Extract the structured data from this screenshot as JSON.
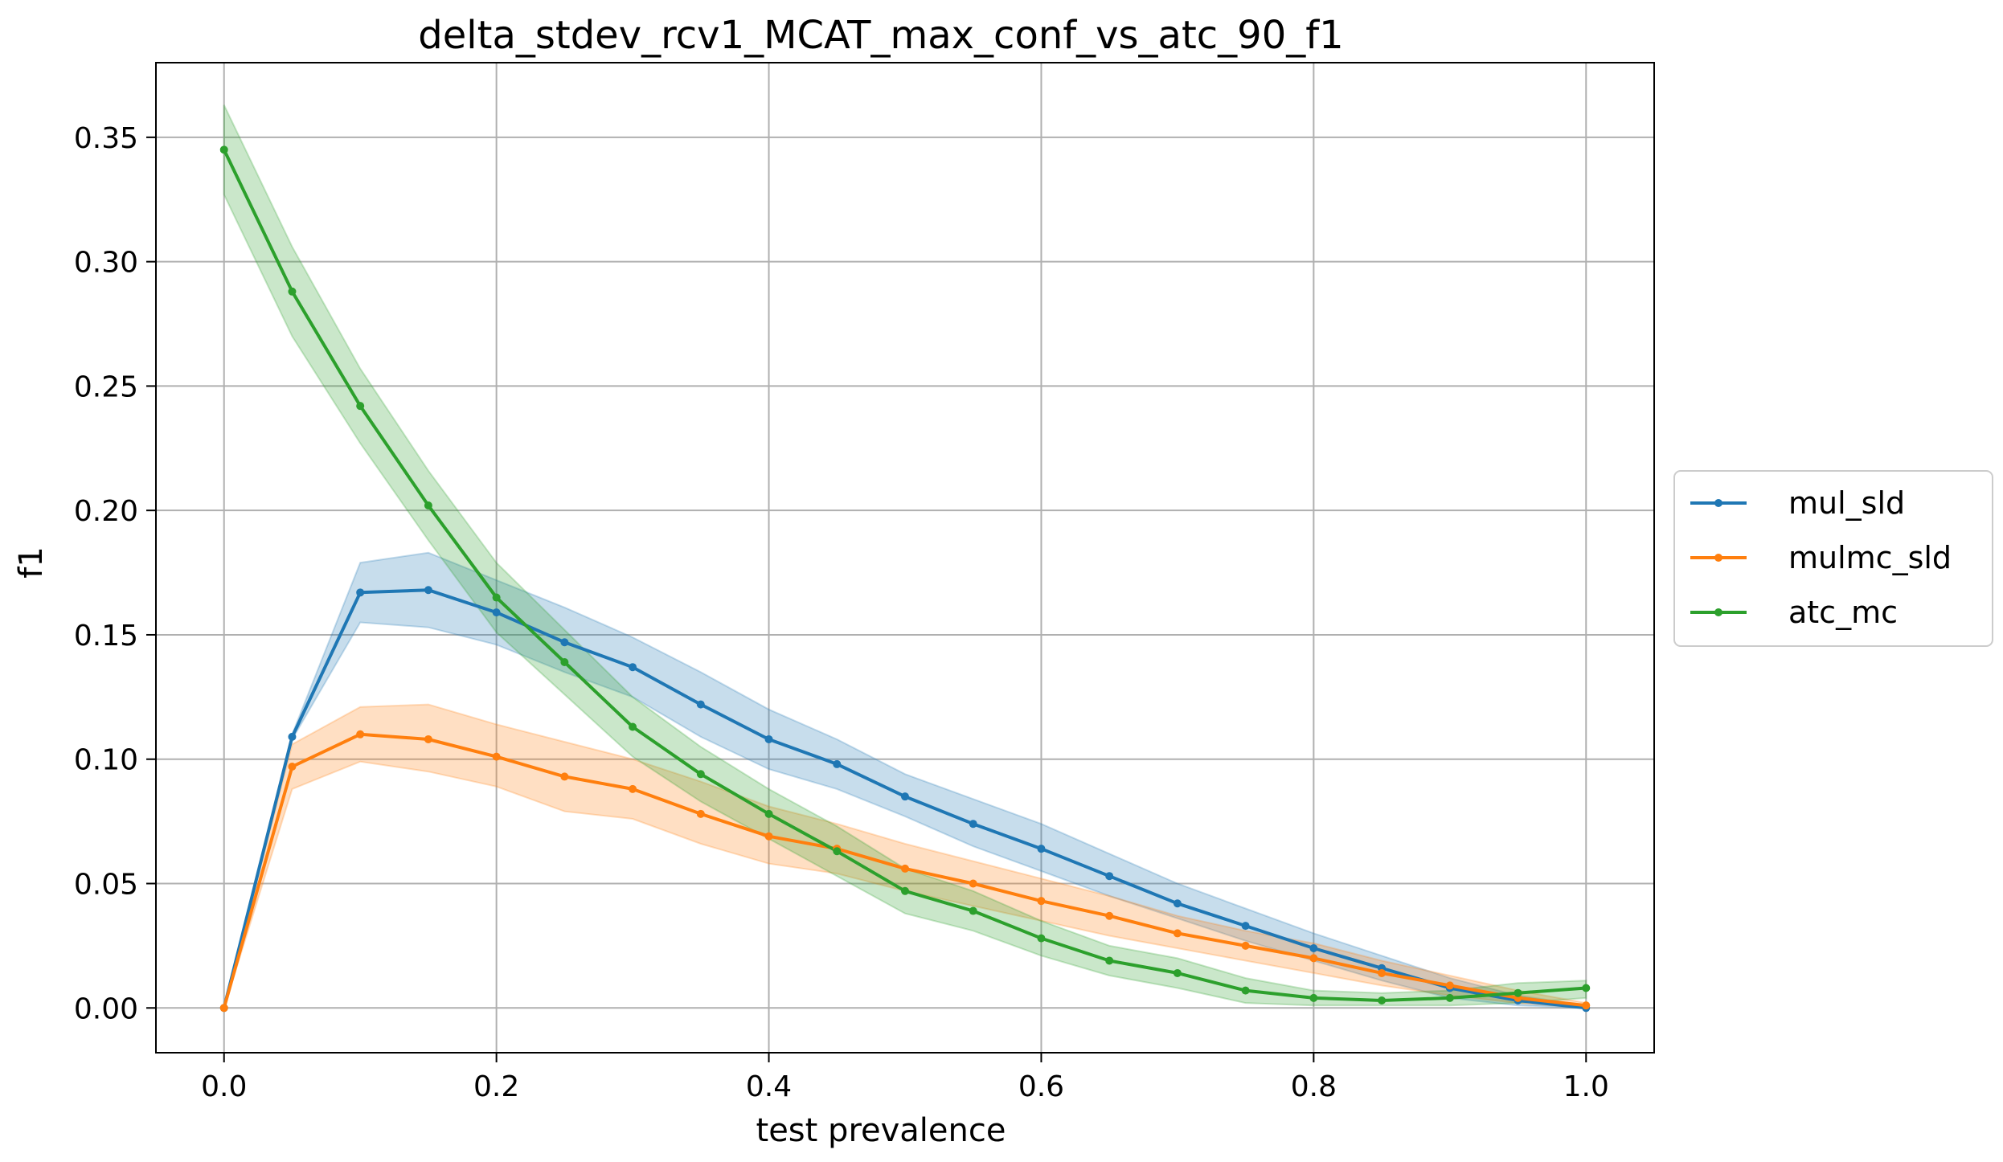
{
  "chart_data": {
    "type": "line",
    "title": "delta_stdev_rcv1_MCAT_max_conf_vs_atc_90_f1",
    "xlabel": "test prevalence",
    "ylabel": "f1",
    "xlim": [
      -0.05,
      1.05
    ],
    "ylim": [
      -0.018,
      0.38
    ],
    "xticks": [
      0.0,
      0.2,
      0.4,
      0.6,
      0.8,
      1.0
    ],
    "xtick_labels": [
      "0.0",
      "0.2",
      "0.4",
      "0.6",
      "0.8",
      "1.0"
    ],
    "yticks": [
      0.0,
      0.05,
      0.1,
      0.15,
      0.2,
      0.25,
      0.3,
      0.35
    ],
    "ytick_labels": [
      "0.00",
      "0.05",
      "0.10",
      "0.15",
      "0.20",
      "0.25",
      "0.30",
      "0.35"
    ],
    "grid": true,
    "legend_position": "center-right-outside",
    "x": [
      0.0,
      0.05,
      0.1,
      0.15,
      0.2,
      0.25,
      0.3,
      0.35,
      0.4,
      0.45,
      0.5,
      0.55,
      0.6,
      0.65,
      0.7,
      0.75,
      0.8,
      0.85,
      0.9,
      0.95,
      1.0
    ],
    "series": [
      {
        "name": "mul_sld",
        "color": "#1f77b4",
        "values": [
          0.0,
          0.109,
          0.167,
          0.168,
          0.159,
          0.147,
          0.137,
          0.122,
          0.108,
          0.098,
          0.085,
          0.074,
          0.064,
          0.053,
          0.042,
          0.033,
          0.024,
          0.016,
          0.008,
          0.003,
          0.0
        ],
        "band_lower": [
          0.0,
          0.108,
          0.155,
          0.153,
          0.146,
          0.135,
          0.125,
          0.109,
          0.096,
          0.088,
          0.077,
          0.065,
          0.055,
          0.045,
          0.036,
          0.027,
          0.019,
          0.011,
          0.004,
          0.001,
          0.0
        ],
        "band_upper": [
          0.0,
          0.11,
          0.179,
          0.183,
          0.172,
          0.161,
          0.149,
          0.135,
          0.12,
          0.108,
          0.094,
          0.084,
          0.074,
          0.062,
          0.05,
          0.04,
          0.03,
          0.021,
          0.012,
          0.005,
          0.001
        ]
      },
      {
        "name": "mulmc_sld",
        "color": "#ff7f0e",
        "values": [
          0.0,
          0.097,
          0.11,
          0.108,
          0.101,
          0.093,
          0.088,
          0.078,
          0.069,
          0.064,
          0.056,
          0.05,
          0.043,
          0.037,
          0.03,
          0.025,
          0.02,
          0.014,
          0.009,
          0.004,
          0.001
        ],
        "band_lower": [
          0.0,
          0.088,
          0.099,
          0.095,
          0.089,
          0.079,
          0.076,
          0.066,
          0.058,
          0.054,
          0.047,
          0.041,
          0.035,
          0.029,
          0.024,
          0.019,
          0.014,
          0.009,
          0.005,
          0.002,
          0.0
        ],
        "band_upper": [
          0.0,
          0.106,
          0.121,
          0.122,
          0.114,
          0.107,
          0.1,
          0.091,
          0.081,
          0.074,
          0.066,
          0.059,
          0.052,
          0.045,
          0.037,
          0.031,
          0.026,
          0.019,
          0.013,
          0.007,
          0.002
        ]
      },
      {
        "name": "atc_mc",
        "color": "#2ca02c",
        "values": [
          0.345,
          0.288,
          0.242,
          0.202,
          0.165,
          0.139,
          0.113,
          0.094,
          0.078,
          0.063,
          0.047,
          0.039,
          0.028,
          0.019,
          0.014,
          0.007,
          0.004,
          0.003,
          0.004,
          0.006,
          0.008
        ],
        "band_lower": [
          0.327,
          0.27,
          0.227,
          0.188,
          0.151,
          0.126,
          0.101,
          0.083,
          0.068,
          0.053,
          0.038,
          0.031,
          0.021,
          0.013,
          0.008,
          0.002,
          0.001,
          0.001,
          0.001,
          0.002,
          0.004
        ],
        "band_upper": [
          0.363,
          0.306,
          0.257,
          0.216,
          0.179,
          0.152,
          0.125,
          0.105,
          0.088,
          0.073,
          0.056,
          0.047,
          0.035,
          0.025,
          0.02,
          0.012,
          0.007,
          0.006,
          0.007,
          0.01,
          0.011
        ]
      }
    ]
  }
}
